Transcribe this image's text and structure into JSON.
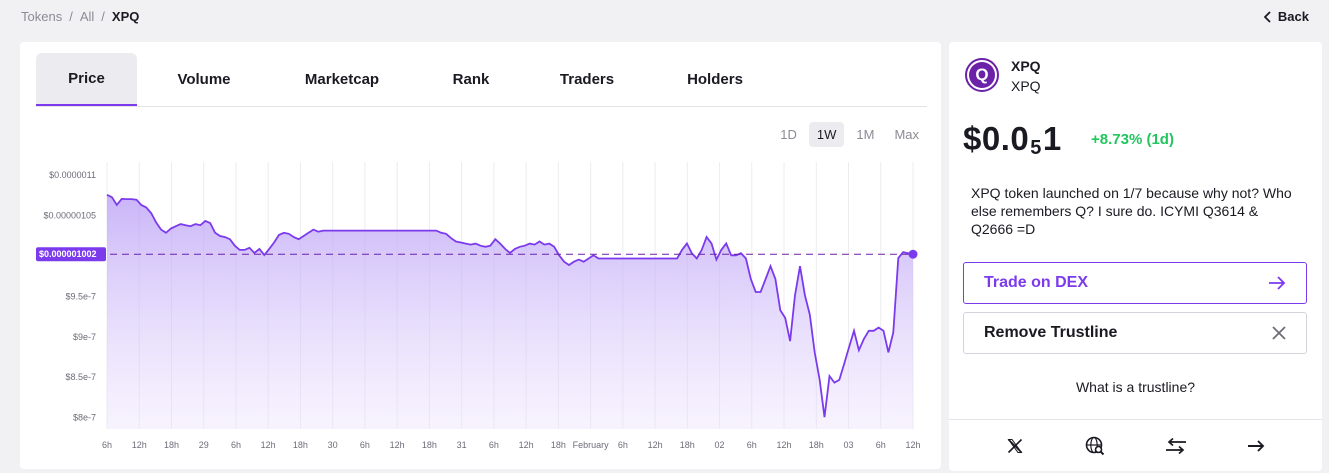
{
  "breadcrumb": {
    "items": [
      "Tokens",
      "All",
      "XPQ"
    ],
    "separator": "/"
  },
  "back_label": "Back",
  "tabs": [
    "Price",
    "Volume",
    "Marketcap",
    "Rank",
    "Traders",
    "Holders"
  ],
  "active_tab": "Price",
  "ranges": [
    "1D",
    "1W",
    "1M",
    "Max"
  ],
  "active_range": "1W",
  "token": {
    "logo_letter": "Q",
    "symbol": "XPQ",
    "name": "XPQ",
    "price_prefix": "$0.0",
    "price_zeros_sub": "5",
    "price_suffix": "1",
    "change": "+8.73% (1d)",
    "description": "XPQ token launched on 1/7 because why not? Who else remembers Q? I sure do. ICYMI Q3614 & Q2666 =D"
  },
  "actions": {
    "trade_label": "Trade on DEX",
    "remove_label": "Remove Trustline",
    "trustline_link": "What is a trustline?"
  },
  "footer_icons": [
    "x-twitter-icon",
    "web-search-icon",
    "swap-icon",
    "arrow-right-icon"
  ],
  "colors": {
    "accent": "#7c3aed",
    "positive": "#22c55e",
    "fill": "#c4b5fd"
  },
  "chart_data": {
    "type": "area",
    "ylabels": [
      "$0.0000011",
      "$0.00000105",
      "$9.5e-7",
      "$9e-7",
      "$8.5e-7",
      "$8e-7"
    ],
    "yticks": [
      1.1e-06,
      1.05e-06,
      9.5e-07,
      9e-07,
      8.5e-07,
      8e-07
    ],
    "ylim": [
      7.86e-07,
      1.116e-06
    ],
    "current_label": "$0.000001002",
    "current_value": 1.002e-06,
    "xlabels": [
      "6h",
      "12h",
      "18h",
      "29",
      "6h",
      "12h",
      "18h",
      "30",
      "6h",
      "12h",
      "18h",
      "31",
      "6h",
      "12h",
      "18h",
      "February",
      "6h",
      "12h",
      "18h",
      "02",
      "6h",
      "12h",
      "18h",
      "03",
      "6h",
      "12h"
    ],
    "grid": true,
    "values": [
      1.0755e-06,
      1.0725e-06,
      1.063e-06,
      1.0704e-06,
      1.0702e-06,
      1.0702e-06,
      1.0694e-06,
      1.0627e-06,
      1.0598e-06,
      1.0528e-06,
      1.0413e-06,
      1.0325e-06,
      1.0285e-06,
      1.0338e-06,
      1.0366e-06,
      1.0392e-06,
      1.0379e-06,
      1.0366e-06,
      1.0392e-06,
      1.0379e-06,
      1.0432e-06,
      1.0405e-06,
      1.0285e-06,
      1.0245e-06,
      1.0232e-06,
      1.0206e-06,
      1.0126e-06,
      1.0074e-06,
      1.0074e-06,
      1.0099e-06,
      1.0035e-06,
      1.0086e-06,
      1.0009e-06,
      1.0086e-06,
      1.0165e-06,
      1.0259e-06,
      1.0285e-06,
      1.0272e-06,
      1.0232e-06,
      1.0206e-06,
      1.0246e-06,
      1.0285e-06,
      1.0325e-06,
      1.0299e-06,
      1.0312e-06,
      1.0312e-06,
      1.0312e-06,
      1.0312e-06,
      1.0312e-06,
      1.0312e-06,
      1.0312e-06,
      1.0312e-06,
      1.0312e-06,
      1.0312e-06,
      1.0312e-06,
      1.0312e-06,
      1.0312e-06,
      1.0312e-06,
      1.0312e-06,
      1.0312e-06,
      1.0312e-06,
      1.0312e-06,
      1.0312e-06,
      1.0312e-06,
      1.0312e-06,
      1.0312e-06,
      1.0312e-06,
      1.0312e-06,
      1.0285e-06,
      1.0272e-06,
      1.0219e-06,
      1.0178e-06,
      1.0165e-06,
      1.0152e-06,
      1.0139e-06,
      1.0152e-06,
      1.0126e-06,
      1.0112e-06,
      1.0125e-06,
      1.0206e-06,
      1.0152e-06,
      1.0086e-06,
      1.0035e-06,
      1.0086e-06,
      1.0112e-06,
      1.0126e-06,
      1.0152e-06,
      1.0139e-06,
      1.0178e-06,
      1.0139e-06,
      1.0152e-06,
      1.0112e-06,
      1.0007e-06,
      9.9275e-07,
      9.8875e-07,
      9.9275e-07,
      9.9542e-07,
      9.9275e-07,
      9.9667e-07,
      1.00067e-06,
      9.9667e-07,
      9.9667e-07,
      9.9667e-07,
      9.9667e-07,
      9.9667e-07,
      9.9667e-07,
      9.9667e-07,
      9.9667e-07,
      9.9667e-07,
      9.9667e-07,
      9.9667e-07,
      9.9667e-07,
      9.9667e-07,
      9.9667e-07,
      9.9667e-07,
      9.9667e-07,
      9.9667e-07,
      1.00734e-06,
      1.01534e-06,
      1.00334e-06,
      9.9667e-07,
      1.00734e-06,
      1.02334e-06,
      1.01534e-06,
      9.9534e-07,
      1.00734e-06,
      1.01534e-06,
      1.00067e-06,
      1.00067e-06,
      1.00334e-06,
      9.9667e-07,
      9.7134e-07,
      9.5534e-07,
      9.5534e-07,
      9.7134e-07,
      9.8734e-07,
      9.7134e-07,
      9.3267e-07,
      9.2334e-07,
      8.9467e-07,
      9.5134e-07,
      9.8734e-07,
      9.5134e-07,
      9.2734e-07,
      8.8067e-07,
      8.4734e-07,
      8.0067e-07,
      8.5134e-07,
      8.4334e-07,
      8.4667e-07,
      8.6667e-07,
      8.8734e-07,
      9.0734e-07,
      8.8334e-07,
      8.9734e-07,
      9.0734e-07,
      9.0734e-07,
      9.1134e-07,
      9.0734e-07,
      8.8067e-07,
      9.0534e-07,
      9.9734e-07,
      1.00467e-06,
      1.00334e-06,
      1.002e-06
    ]
  }
}
